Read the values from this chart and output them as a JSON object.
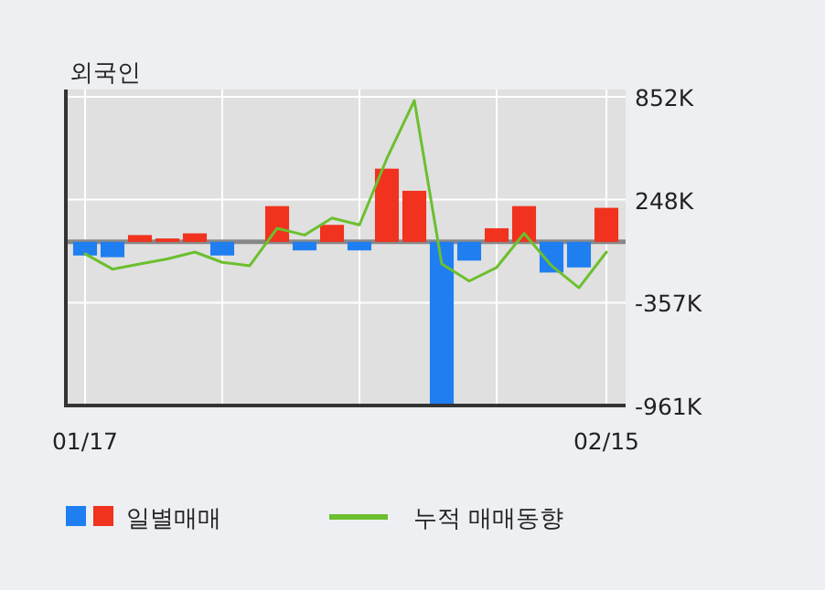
{
  "chart_data": {
    "type": "bar",
    "title": "외국인",
    "categories": [
      "01/17",
      null,
      null,
      null,
      null,
      null,
      null,
      null,
      null,
      null,
      null,
      null,
      null,
      null,
      null,
      null,
      null,
      null,
      null,
      "02/15"
    ],
    "series": [
      {
        "name": "일별매매",
        "colors": [
          "#1f7ef0",
          "#1f7ef0",
          "#f0321e",
          "#f0321e",
          "#f0321e",
          "#1f7ef0",
          "#f0321e",
          "#f0321e",
          "#1f7ef0",
          "#f0321e",
          "#1f7ef0",
          "#f0321e",
          "#f0321e",
          "#1f7ef0",
          "#1f7ef0",
          "#f0321e",
          "#f0321e",
          "#1f7ef0",
          "#1f7ef0",
          "#f0321e"
        ],
        "values": [
          -80000,
          -90000,
          40000,
          20000,
          50000,
          -80000,
          0,
          210000,
          -50000,
          100000,
          -50000,
          430000,
          300000,
          -960000,
          -110000,
          80000,
          210000,
          -180000,
          -150000,
          200000
        ]
      },
      {
        "name": "누적 매매동향",
        "type": "line",
        "color": "#6cbf2e",
        "values": [
          -70000,
          -160000,
          -130000,
          -100000,
          -60000,
          -120000,
          -140000,
          80000,
          40000,
          140000,
          100000,
          490000,
          830000,
          -130000,
          -230000,
          -150000,
          50000,
          -140000,
          -270000,
          -60000
        ]
      }
    ],
    "ylim": [
      -961000,
      852000
    ],
    "yticks": [
      {
        "value": 852000,
        "label": "852K"
      },
      {
        "value": 248000,
        "label": "248K"
      },
      {
        "value": -357000,
        "label": "-357K"
      },
      {
        "value": -961000,
        "label": "-961K"
      }
    ],
    "ref_lines": [
      {
        "axis": "y",
        "value": 0,
        "label": null,
        "color": "#888888"
      }
    ],
    "grid": true,
    "legend": "bottom"
  }
}
